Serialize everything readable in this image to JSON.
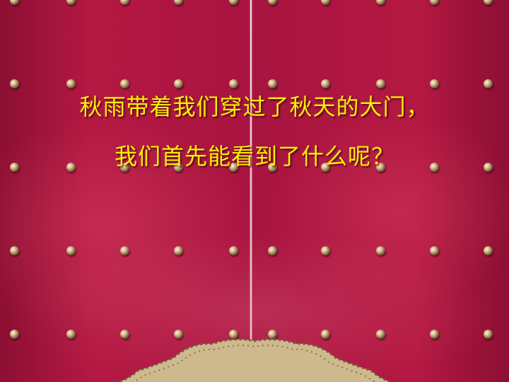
{
  "slide": {
    "line1": "秋雨带着我们穿过了秋天的大门，",
    "line2": "我们首先能看到了什么呢？"
  },
  "colors": {
    "background": "#a8103a",
    "text": "#f7f000"
  }
}
